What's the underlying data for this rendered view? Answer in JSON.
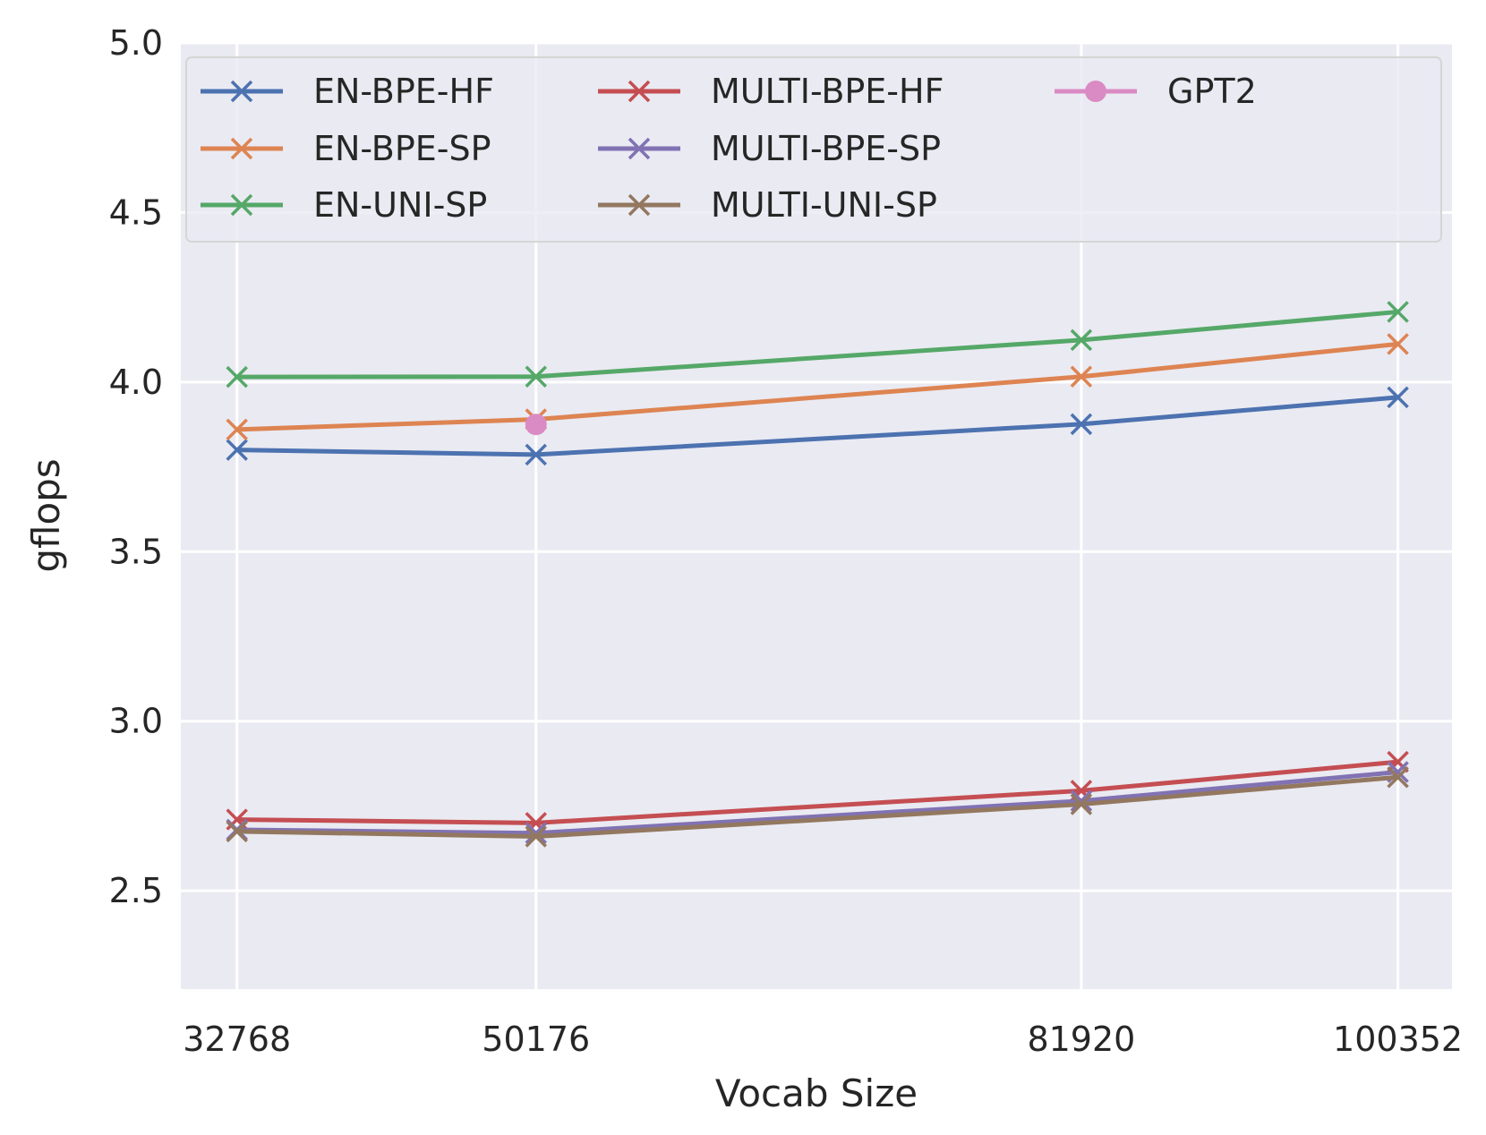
{
  "chart_data": {
    "type": "line",
    "title": "",
    "xlabel": "Vocab Size",
    "ylabel": "gflops",
    "x": [
      32768,
      50176,
      81920,
      100352
    ],
    "x_tick_labels": [
      "32768",
      "50176",
      "81920",
      "100352"
    ],
    "y_ticks": [
      2.5,
      3.0,
      3.5,
      4.0,
      4.5,
      5.0
    ],
    "y_tick_labels": [
      "2.5",
      "3.0",
      "3.5",
      "4.0",
      "4.5",
      "5.0"
    ],
    "xlim": [
      29500,
      103500
    ],
    "ylim": [
      2.21,
      5.0
    ],
    "grid": true,
    "legend_position": "top",
    "legend_columns": 3,
    "series": [
      {
        "name": "EN-BPE-HF",
        "color": "#4c72b0",
        "marker": "x",
        "values": [
          3.8,
          3.786,
          3.876,
          3.955
        ]
      },
      {
        "name": "EN-BPE-SP",
        "color": "#dd8452",
        "marker": "x",
        "values": [
          3.86,
          3.89,
          4.016,
          4.112
        ]
      },
      {
        "name": "EN-UNI-SP",
        "color": "#55a868",
        "marker": "x",
        "values": [
          4.015,
          4.016,
          4.124,
          4.207
        ]
      },
      {
        "name": "MULTI-BPE-HF",
        "color": "#c44e52",
        "marker": "x",
        "values": [
          2.71,
          2.7,
          2.795,
          2.88
        ]
      },
      {
        "name": "MULTI-BPE-SP",
        "color": "#8172b3",
        "marker": "x",
        "values": [
          2.68,
          2.67,
          2.765,
          2.85
        ]
      },
      {
        "name": "MULTI-UNI-SP",
        "color": "#937860",
        "marker": "x",
        "values": [
          2.675,
          2.66,
          2.755,
          2.835
        ]
      },
      {
        "name": "GPT2",
        "color": "#da8bc3",
        "marker": "o",
        "points": [
          {
            "x": 50176,
            "y": 3.875
          }
        ]
      }
    ]
  }
}
